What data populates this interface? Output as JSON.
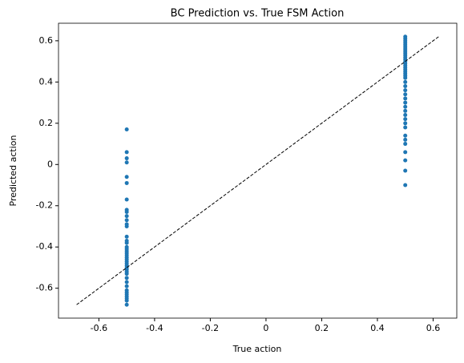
{
  "chart_data": {
    "type": "scatter",
    "title": "BC Prediction vs. True FSM Action",
    "xlabel": "True action",
    "ylabel": "Predicted action",
    "color": "#1f77b4",
    "xlim": [
      -0.745,
      0.685
    ],
    "ylim": [
      -0.745,
      0.685
    ],
    "xticks": [
      -0.6,
      -0.4,
      -0.2,
      0.0,
      0.2,
      0.4,
      0.6
    ],
    "yticks": [
      -0.6,
      -0.4,
      -0.2,
      0.0,
      0.2,
      0.4,
      0.6
    ],
    "diagonal": {
      "x": [
        -0.68,
        0.62
      ],
      "y": [
        -0.68,
        0.62
      ],
      "color": "#000000"
    },
    "series": [
      {
        "x": [
          -0.5,
          -0.5,
          -0.5,
          -0.5,
          -0.5,
          -0.5,
          -0.5,
          -0.5,
          -0.5,
          -0.5,
          -0.5,
          -0.5,
          -0.5,
          -0.5,
          -0.5,
          -0.5,
          -0.5,
          -0.5,
          -0.5,
          -0.5,
          -0.5,
          -0.5,
          -0.5,
          -0.5,
          -0.5,
          -0.5,
          -0.5,
          -0.5,
          -0.5,
          -0.5,
          -0.5,
          -0.5,
          -0.5,
          -0.5,
          -0.5,
          -0.5,
          -0.5,
          -0.5,
          -0.5,
          -0.5
        ],
        "values": [
          0.17,
          0.06,
          0.03,
          0.01,
          -0.06,
          -0.09,
          -0.17,
          -0.22,
          -0.23,
          -0.25,
          -0.27,
          -0.29,
          -0.3,
          -0.35,
          -0.37,
          -0.38,
          -0.4,
          -0.41,
          -0.42,
          -0.43,
          -0.44,
          -0.45,
          -0.46,
          -0.47,
          -0.48,
          -0.49,
          -0.5,
          -0.51,
          -0.52,
          -0.53,
          -0.55,
          -0.57,
          -0.59,
          -0.61,
          -0.62,
          -0.63,
          -0.64,
          -0.65,
          -0.66,
          -0.68
        ]
      },
      {
        "x": [
          0.5,
          0.5,
          0.5,
          0.5,
          0.5,
          0.5,
          0.5,
          0.5,
          0.5,
          0.5,
          0.5,
          0.5,
          0.5,
          0.5,
          0.5,
          0.5,
          0.5,
          0.5,
          0.5,
          0.5,
          0.5,
          0.5,
          0.5,
          0.5,
          0.5,
          0.5,
          0.5,
          0.5,
          0.5,
          0.5,
          0.5,
          0.5,
          0.5,
          0.5,
          0.5,
          0.5,
          0.5,
          0.5,
          0.5,
          0.5
        ],
        "values": [
          0.62,
          0.61,
          0.6,
          0.59,
          0.58,
          0.57,
          0.56,
          0.55,
          0.54,
          0.53,
          0.52,
          0.51,
          0.5,
          0.49,
          0.48,
          0.47,
          0.46,
          0.45,
          0.44,
          0.43,
          0.42,
          0.4,
          0.38,
          0.36,
          0.34,
          0.32,
          0.3,
          0.28,
          0.26,
          0.24,
          0.22,
          0.2,
          0.18,
          0.14,
          0.12,
          0.1,
          0.06,
          0.02,
          -0.03,
          -0.1
        ]
      }
    ]
  }
}
